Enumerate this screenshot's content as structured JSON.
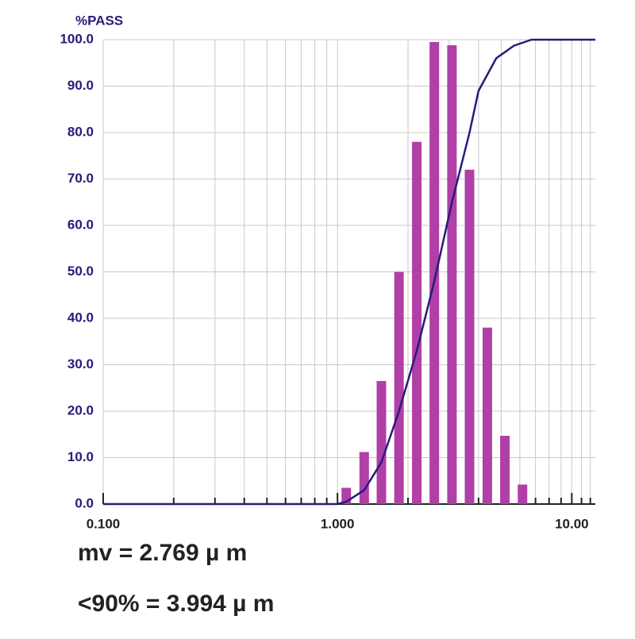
{
  "chart_data": {
    "type": "combo",
    "ylabel": "%PASS",
    "xlog": true,
    "xlim": [
      0.1,
      12.6
    ],
    "ylim": [
      0,
      100
    ],
    "xticks": [
      {
        "value": 0.1,
        "label": "0.100"
      },
      {
        "value": 1,
        "label": "1.000"
      },
      {
        "value": 10,
        "label": "10.00"
      }
    ],
    "xminor": [
      0.2,
      0.3,
      0.4,
      0.5,
      0.6,
      0.7,
      0.8,
      0.9,
      2,
      3,
      4,
      5,
      6,
      7,
      8,
      9,
      11,
      12
    ],
    "yticks": [
      {
        "value": 0,
        "label": "0.0"
      },
      {
        "value": 10,
        "label": "10.0"
      },
      {
        "value": 20,
        "label": "20.0"
      },
      {
        "value": 30,
        "label": "30.0"
      },
      {
        "value": 40,
        "label": "40.0"
      },
      {
        "value": 50,
        "label": "50.0"
      },
      {
        "value": 60,
        "label": "60.0"
      },
      {
        "value": 70,
        "label": "70.0"
      },
      {
        "value": 80,
        "label": "80.0"
      },
      {
        "value": 90,
        "label": "90.0"
      },
      {
        "value": 100,
        "label": "100.0"
      }
    ],
    "grid": true,
    "bars": {
      "color": "#b03fa8",
      "x": [
        1.09,
        1.3,
        1.54,
        1.83,
        2.18,
        2.59,
        3.08,
        3.66,
        4.36,
        5.18,
        6.16
      ],
      "values": [
        3.5,
        11.2,
        26.5,
        50,
        78,
        99.5,
        98.8,
        72,
        38,
        14.7,
        4.2
      ]
    },
    "line": {
      "color": "#2a1a7a",
      "x": [
        0.1,
        1.0,
        1.09,
        1.3,
        1.54,
        1.83,
        2.18,
        2.59,
        3.08,
        3.66,
        4.0,
        4.76,
        5.66,
        6.73,
        12.6
      ],
      "values": [
        0,
        0,
        0.5,
        3,
        9,
        20,
        33,
        48,
        65,
        80,
        89,
        96,
        98.7,
        100,
        100
      ]
    },
    "annotations": [
      "mv = 2.769 µ m",
      "<90% = 3.994 µ m"
    ]
  }
}
